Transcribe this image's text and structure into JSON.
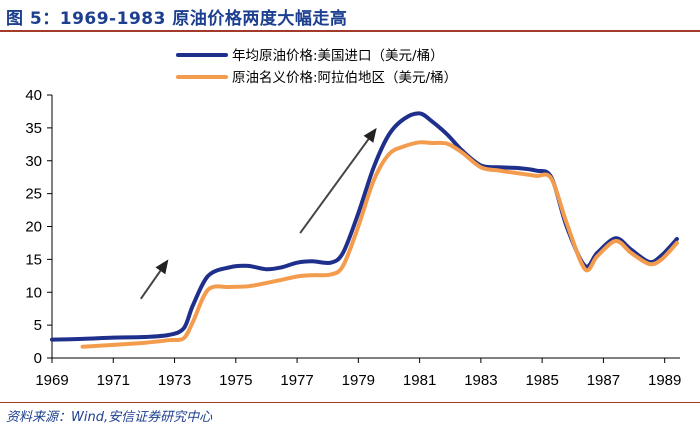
{
  "header": {
    "title": "图 5：1969-1983 原油价格两度大幅走高"
  },
  "footer": {
    "source": "资料来源：Wind,安信证券研究中心"
  },
  "chart_data": {
    "type": "line",
    "title": "",
    "xlabel": "",
    "ylabel": "",
    "xlim": [
      1969,
      1989.5
    ],
    "ylim": [
      0,
      40
    ],
    "x_ticks": [
      "1969",
      "1971",
      "1973",
      "1975",
      "1977",
      "1979",
      "1981",
      "1983",
      "1985",
      "1987",
      "1989"
    ],
    "y_ticks": [
      "0",
      "5",
      "10",
      "15",
      "20",
      "25",
      "30",
      "35",
      "40"
    ],
    "grid": false,
    "legend_position": "top",
    "series": [
      {
        "name": "年均原油价格:美国进口（美元/桶）",
        "color": "#1f2f8c",
        "x": [
          1969,
          1970,
          1971,
          1972,
          1972.8,
          1973.3,
          1973.6,
          1974.1,
          1974.8,
          1975.4,
          1976,
          1976.5,
          1977,
          1977.5,
          1978.1,
          1978.5,
          1979,
          1979.5,
          1980,
          1980.5,
          1981,
          1981.4,
          1981.9,
          1982.4,
          1983,
          1983.6,
          1984.2,
          1984.8,
          1985.3,
          1985.8,
          1986.4,
          1986.8,
          1987.4,
          1987.9,
          1988.5,
          1988.9,
          1989.4
        ],
        "y": [
          2.8,
          2.9,
          3.1,
          3.2,
          3.5,
          4.5,
          8,
          12.5,
          13.8,
          14,
          13.5,
          13.8,
          14.5,
          14.7,
          14.5,
          16,
          22,
          29,
          34,
          36.4,
          37.2,
          36,
          34,
          31.5,
          29.3,
          29,
          28.9,
          28.5,
          27.5,
          20,
          14,
          16,
          18.2,
          16.5,
          14.6,
          15.6,
          18.1
        ]
      },
      {
        "name": "原油名义价格:阿拉伯地区（美元/桶）",
        "color": "#f39c4e",
        "x": [
          1970,
          1971,
          1972,
          1972.8,
          1973.3,
          1973.6,
          1974.1,
          1974.8,
          1975.4,
          1976,
          1976.5,
          1977,
          1977.5,
          1978.1,
          1978.5,
          1979,
          1979.5,
          1980,
          1980.5,
          1981,
          1981.4,
          1981.9,
          1982.4,
          1983,
          1983.6,
          1984.2,
          1984.8,
          1985.3,
          1985.8,
          1986.4,
          1986.8,
          1987.4,
          1987.9,
          1988.5,
          1988.9,
          1989.4
        ],
        "y": [
          1.7,
          2.0,
          2.3,
          2.7,
          3.0,
          5.5,
          10.4,
          10.8,
          10.9,
          11.4,
          11.9,
          12.4,
          12.6,
          12.7,
          14.0,
          20.0,
          27.0,
          31.0,
          32.2,
          32.8,
          32.7,
          32.6,
          31.2,
          29.0,
          28.5,
          28.1,
          27.7,
          27.3,
          20.5,
          13.5,
          15.5,
          17.8,
          16.0,
          14.3,
          15.0,
          17.5
        ]
      }
    ],
    "annotations": [
      {
        "type": "arrow",
        "from": [
          1971.9,
          9.0
        ],
        "to": [
          1972.8,
          15.0
        ]
      },
      {
        "type": "arrow",
        "from": [
          1977.1,
          19.0
        ],
        "to": [
          1979.6,
          35.0
        ]
      }
    ]
  }
}
